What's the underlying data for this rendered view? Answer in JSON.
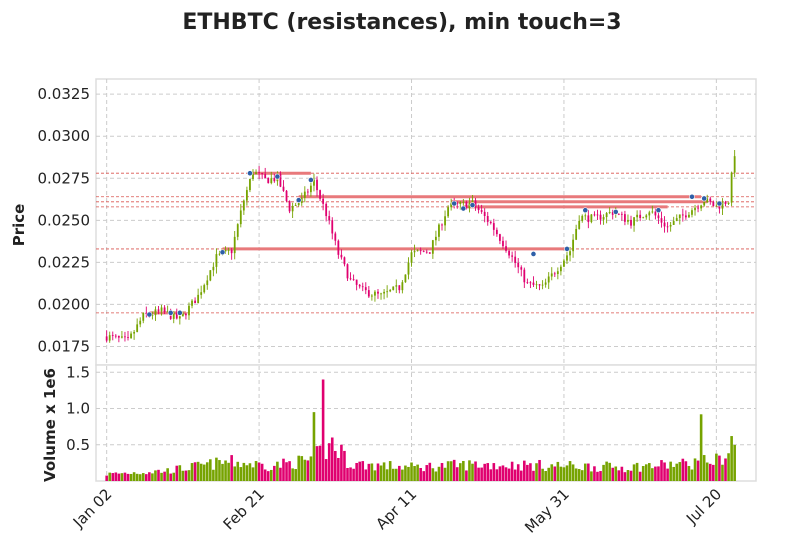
{
  "chart_data": {
    "type": "candlestick",
    "title": "ETHBTC (resistances), min touch=3",
    "price_panel": {
      "ylabel": "Price",
      "ylim": [
        0.0164,
        0.0334
      ],
      "yticks": [
        0.0175,
        0.02,
        0.0225,
        0.025,
        0.0275,
        0.03,
        0.0325
      ],
      "ytick_labels": [
        "0.0175",
        "0.0200",
        "0.0225",
        "0.0250",
        "0.0275",
        "0.0300",
        "0.0325"
      ],
      "grid": true
    },
    "volume_panel": {
      "ylabel": "Volume x 1e6",
      "ylim": [
        0,
        1.6
      ],
      "yticks": [
        0.5,
        1.0,
        1.5
      ],
      "ytick_labels": [
        "0.5",
        "1.0",
        "1.5"
      ],
      "grid": true
    },
    "x_axis": {
      "n_days": 207,
      "xlim": [
        -3.5,
        213
      ],
      "ticks": [
        0,
        50,
        100,
        150,
        200
      ],
      "tick_labels": [
        "Jan 02",
        "Feb 21",
        "Apr 11",
        "May 31",
        "Jul 20"
      ]
    },
    "price_path_anchors": [
      [
        0,
        0.0181
      ],
      [
        7,
        0.0178
      ],
      [
        12,
        0.0193
      ],
      [
        18,
        0.0196
      ],
      [
        24,
        0.0191
      ],
      [
        30,
        0.0205
      ],
      [
        36,
        0.0228
      ],
      [
        41,
        0.0232
      ],
      [
        45,
        0.0262
      ],
      [
        48,
        0.0279
      ],
      [
        52,
        0.0274
      ],
      [
        56,
        0.0275
      ],
      [
        60,
        0.0257
      ],
      [
        64,
        0.0262
      ],
      [
        68,
        0.0273
      ],
      [
        72,
        0.0254
      ],
      [
        76,
        0.023
      ],
      [
        80,
        0.0214
      ],
      [
        84,
        0.0208
      ],
      [
        90,
        0.0205
      ],
      [
        96,
        0.021
      ],
      [
        100,
        0.023
      ],
      [
        106,
        0.0232
      ],
      [
        112,
        0.0258
      ],
      [
        120,
        0.026
      ],
      [
        126,
        0.0248
      ],
      [
        132,
        0.0231
      ],
      [
        138,
        0.0212
      ],
      [
        143,
        0.021
      ],
      [
        148,
        0.0222
      ],
      [
        152,
        0.0232
      ],
      [
        155,
        0.0252
      ],
      [
        160,
        0.0251
      ],
      [
        166,
        0.0255
      ],
      [
        172,
        0.0249
      ],
      [
        178,
        0.0256
      ],
      [
        184,
        0.0246
      ],
      [
        190,
        0.0254
      ],
      [
        196,
        0.0262
      ],
      [
        200,
        0.0258
      ],
      [
        204,
        0.0262
      ],
      [
        206,
        0.029
      ]
    ],
    "volume_profile": [
      [
        0,
        0.1
      ],
      [
        20,
        0.15
      ],
      [
        40,
        0.28
      ],
      [
        54,
        0.22
      ],
      [
        66,
        0.3
      ],
      [
        74,
        0.5
      ],
      [
        80,
        0.25
      ],
      [
        100,
        0.2
      ],
      [
        120,
        0.24
      ],
      [
        150,
        0.22
      ],
      [
        170,
        0.2
      ],
      [
        190,
        0.25
      ],
      [
        200,
        0.3
      ],
      [
        206,
        0.45
      ]
    ],
    "volume_spikes": [
      [
        68,
        0.95
      ],
      [
        71,
        1.4
      ],
      [
        74,
        0.6
      ],
      [
        77,
        0.5
      ],
      [
        195,
        0.92
      ],
      [
        205,
        0.62
      ]
    ],
    "resistance_lines": [
      {
        "level": 0.0278,
        "x_start": 47,
        "x_end": 67
      },
      {
        "level": 0.0264,
        "x_start": 63,
        "x_end": 195
      },
      {
        "level": 0.0261,
        "x_start": 113,
        "x_end": 197
      },
      {
        "level": 0.0258,
        "x_start": 117,
        "x_end": 184
      },
      {
        "level": 0.0233,
        "x_start": 38,
        "x_end": 151
      },
      {
        "level": 0.0195,
        "x_start": 14,
        "x_end": 26
      }
    ],
    "touch_points": [
      [
        14,
        0.0194
      ],
      [
        21,
        0.0195
      ],
      [
        24,
        0.0195
      ],
      [
        38,
        0.0231
      ],
      [
        47,
        0.0278
      ],
      [
        56,
        0.0276
      ],
      [
        63,
        0.0262
      ],
      [
        67,
        0.0274
      ],
      [
        114,
        0.026
      ],
      [
        117,
        0.0257
      ],
      [
        120,
        0.0259
      ],
      [
        140,
        0.023
      ],
      [
        151,
        0.0233
      ],
      [
        157,
        0.0256
      ],
      [
        167,
        0.0255
      ],
      [
        181,
        0.0256
      ],
      [
        192,
        0.0264
      ],
      [
        196,
        0.0263
      ],
      [
        201,
        0.026
      ]
    ],
    "colors": {
      "up": "#76a300",
      "down": "#e0006f",
      "resistance_line": "#e8797b",
      "resistance_dotted": "#d9534f",
      "touch_marker": "#2e5fa8",
      "grid": "#cccccc",
      "panel_border": "#dddddd"
    }
  }
}
